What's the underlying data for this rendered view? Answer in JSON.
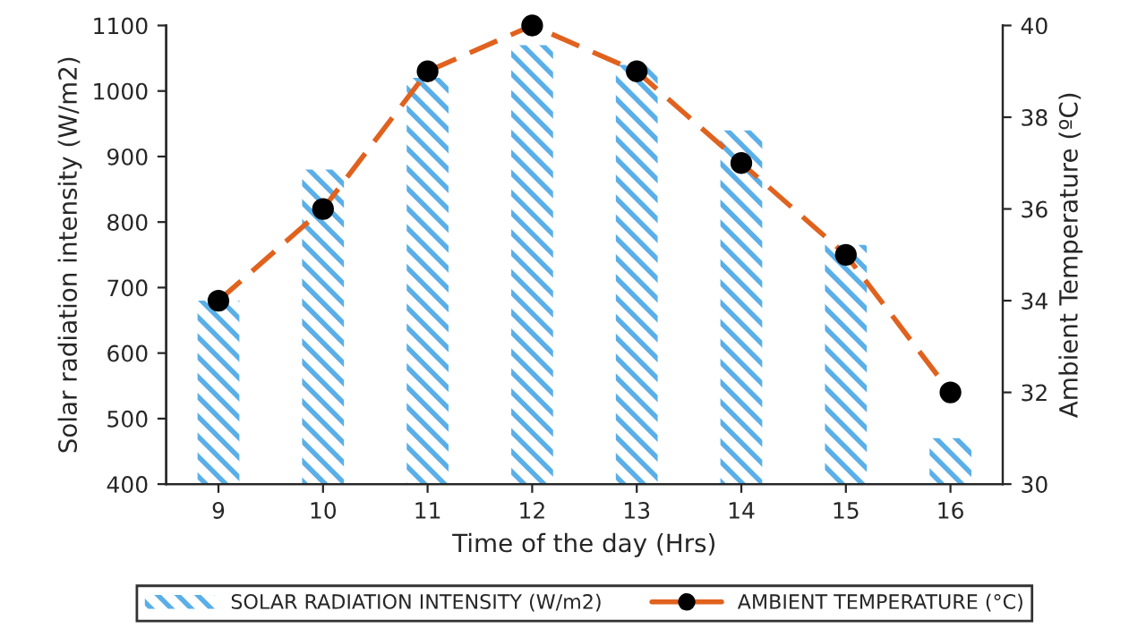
{
  "chart_data": {
    "type": "bar",
    "categories": [
      "9",
      "10",
      "11",
      "12",
      "13",
      "14",
      "15",
      "16"
    ],
    "xlabel": "Time of the day (Hrs)",
    "ylabel": "Solar radiation intensity (W/m2)",
    "y2label": "Ambient Temperature (ºC)",
    "ylim": [
      400,
      1100
    ],
    "yticks": [
      400,
      500,
      600,
      700,
      800,
      900,
      1000,
      1100
    ],
    "y2lim": [
      30,
      40
    ],
    "y2ticks": [
      30,
      32,
      34,
      36,
      38,
      40
    ],
    "series": [
      {
        "name": "SOLAR RADIATION INTENSITY (W/m2)",
        "color": "#5aafe8",
        "values": [
          680,
          880,
          1020,
          1070,
          1040,
          940,
          765,
          470
        ]
      },
      {
        "name": "AMBIENT TEMPERATURE (°C)",
        "type": "line",
        "axis": "y2",
        "color": "#e0621e",
        "marker": "circle",
        "line_style": "dashed",
        "values": [
          34,
          36,
          39,
          40,
          39,
          37,
          35,
          32
        ]
      }
    ],
    "grid": false,
    "legend": "bottom"
  }
}
